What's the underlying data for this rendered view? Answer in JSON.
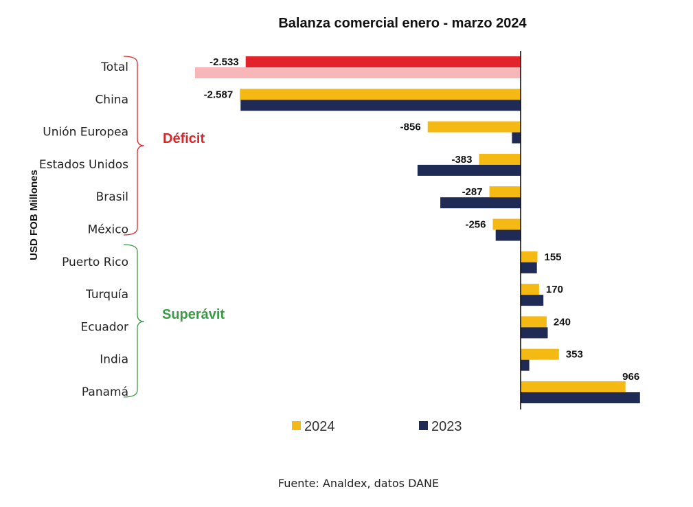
{
  "chart_data": {
    "type": "bar",
    "orientation": "horizontal",
    "title": "Balanza comercial enero - marzo 2024",
    "ylabel": "USD FOB Millones",
    "categories": [
      "Total",
      "China",
      "Unión Europea",
      "Estados Unidos",
      "Brasil",
      "México",
      "Puerto Rico",
      "Turquía",
      "Ecuador",
      "India",
      "Panamá"
    ],
    "series": [
      {
        "name": "2024",
        "color": "#F5B914",
        "values": [
          -2533,
          -2587,
          -856,
          -383,
          -287,
          -256,
          155,
          170,
          240,
          353,
          966
        ]
      },
      {
        "name": "2023",
        "color": "#1F2A55",
        "values": [
          -3000,
          -2580,
          -80,
          -950,
          -740,
          -230,
          150,
          210,
          250,
          80,
          1100
        ]
      }
    ],
    "total_colors": {
      "2024": "#E3232B",
      "2023": "#F7B7B9"
    },
    "data_labels": [
      "-2.533",
      "-2.587",
      "-856",
      "-383",
      "-287",
      "-256",
      "155",
      "170",
      "240",
      "353",
      "966"
    ],
    "xlim": [
      -3050,
      1130
    ],
    "groups": [
      {
        "label": "Déficit",
        "color": "#D9262B"
      },
      {
        "label": "Superávit",
        "color": "#3A9A45"
      }
    ],
    "legend": [
      {
        "label": "2024",
        "color": "#F5B914"
      },
      {
        "label": "2023",
        "color": "#1F2A55"
      }
    ],
    "source": "Fuente: Analdex, datos DANE"
  }
}
